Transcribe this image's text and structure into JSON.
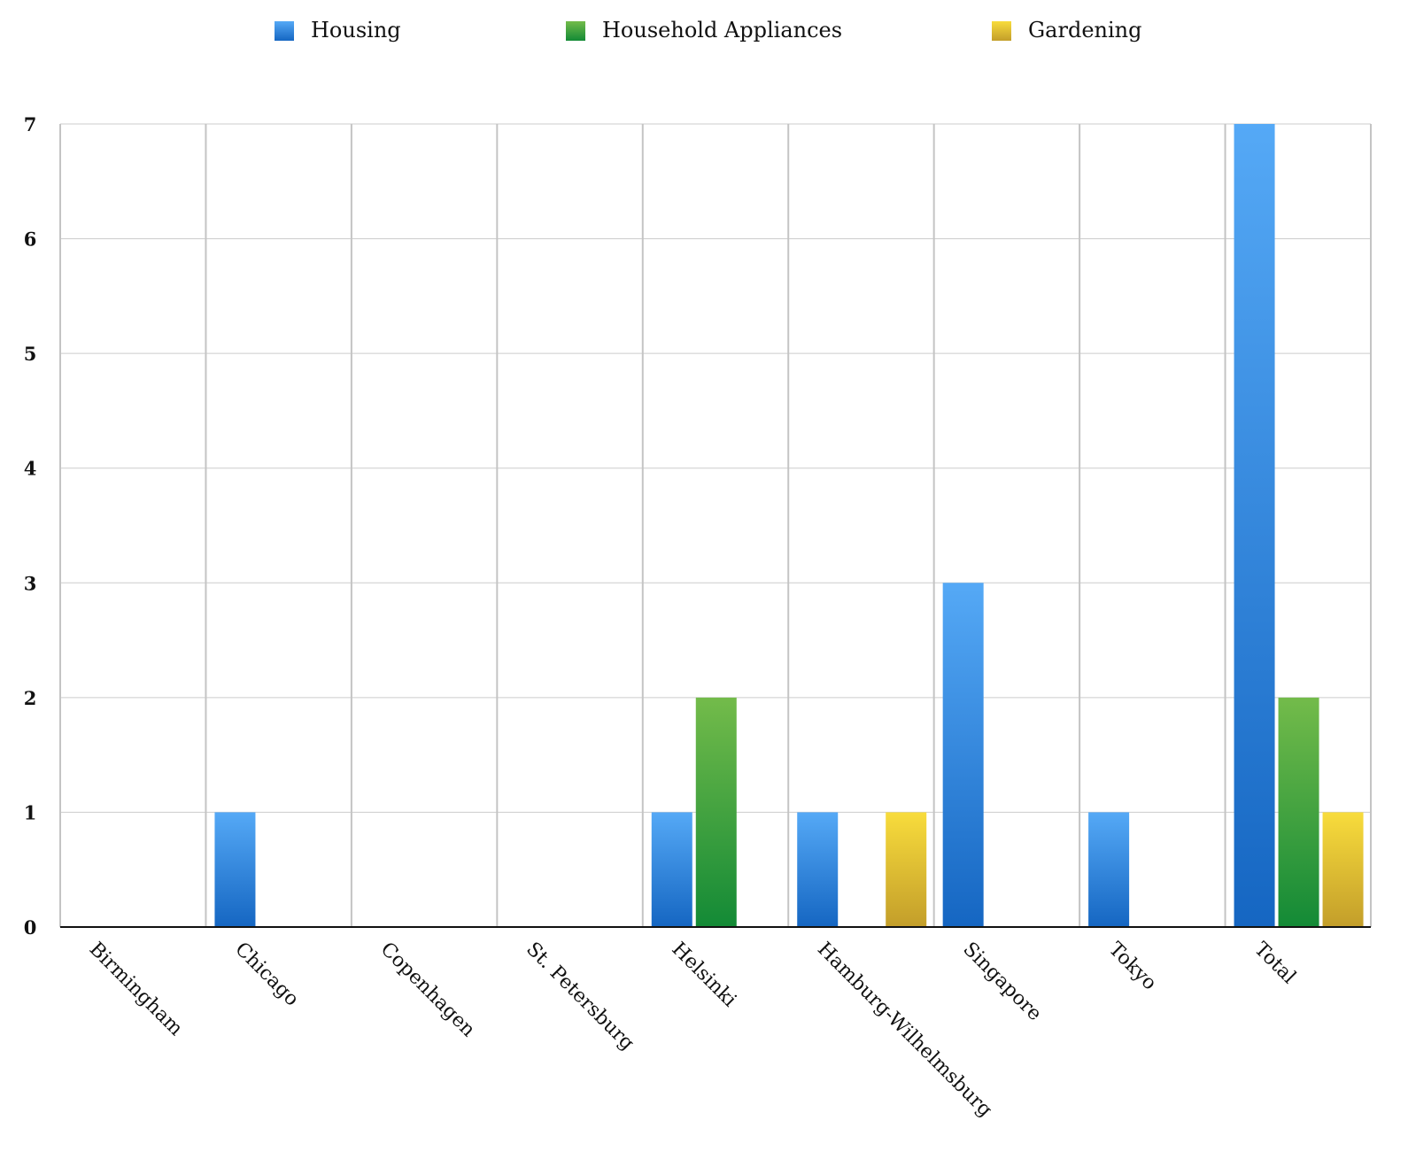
{
  "chart_data": {
    "type": "bar",
    "title": "",
    "xlabel": "",
    "ylabel": "",
    "ylim": [
      0,
      7
    ],
    "yticks": [
      0,
      1,
      2,
      3,
      4,
      5,
      6,
      7
    ],
    "grid": true,
    "legend_position": "top",
    "categories": [
      "Birmingham",
      "Chicago",
      "Copenhagen",
      "St. Petersburg",
      "Helsinki",
      "Hamburg-Wilhelmsburg",
      "Singapore",
      "Tokyo",
      "Total"
    ],
    "series": [
      {
        "name": "Housing",
        "color": "#2f86e0",
        "gradient": [
          "#55a9f6",
          "#1566c2"
        ],
        "values": [
          0,
          1,
          0,
          0,
          1,
          1,
          3,
          1,
          7
        ]
      },
      {
        "name": "Household Appliances",
        "color": "#3aa23f",
        "gradient": [
          "#73bb4a",
          "#138a36"
        ],
        "values": [
          0,
          0,
          0,
          0,
          2,
          0,
          0,
          0,
          2
        ]
      },
      {
        "name": "Gardening",
        "color": "#e5c336",
        "gradient": [
          "#f8dc3c",
          "#c39e2a"
        ],
        "values": [
          0,
          0,
          0,
          0,
          0,
          1,
          0,
          0,
          1
        ]
      }
    ]
  }
}
